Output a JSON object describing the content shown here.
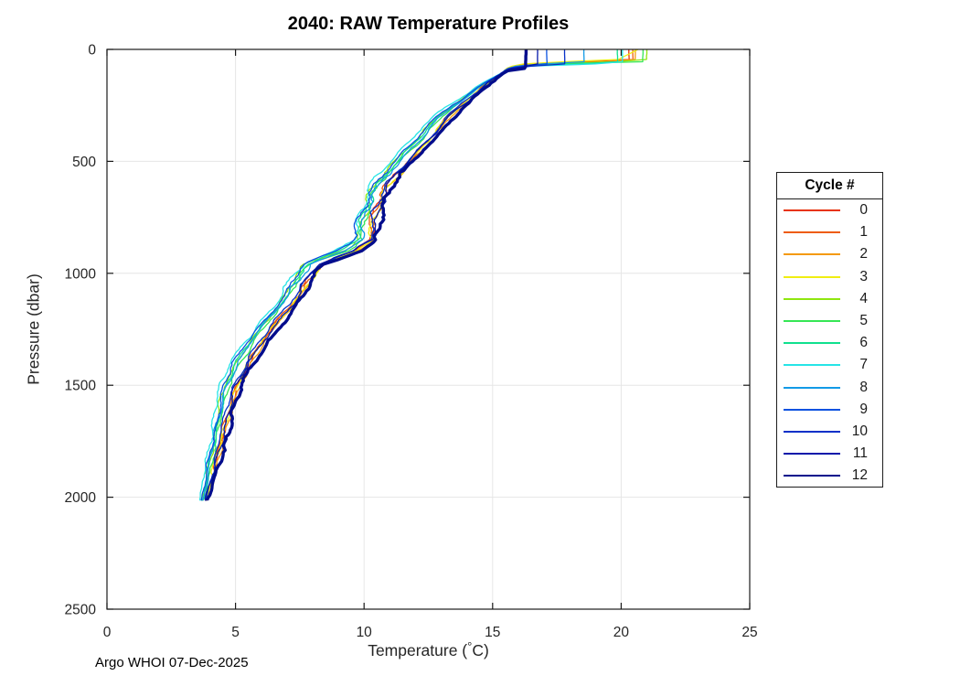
{
  "figure": {
    "title": "2040: RAW Temperature Profiles",
    "footer": "Argo WHOI 07-Dec-2025",
    "xlabel": "Temperature (°C)",
    "ylabel": "Pressure (dbar)",
    "legend_title": "Cycle #"
  },
  "chart_data": {
    "type": "line",
    "title": "2040: RAW Temperature Profiles",
    "xlabel": "Temperature (°C)",
    "ylabel": "Pressure (dbar)",
    "xlim": [
      0,
      25
    ],
    "ylim": [
      0,
      2500
    ],
    "y_axis_reversed": true,
    "grid": true,
    "x_ticks": [
      0,
      5,
      10,
      15,
      20,
      25
    ],
    "y_ticks": [
      0,
      500,
      1000,
      1500,
      2000,
      2500
    ],
    "legend_title": "Cycle #",
    "legend_position": "right-outside",
    "axis_color": "#1a1a1a",
    "axis_text_color": "#262626",
    "grid_color": "#e6e6e6",
    "pressures_dbar": [
      0,
      45,
      55,
      65,
      75,
      85,
      95,
      110,
      150,
      200,
      250,
      300,
      350,
      400,
      450,
      500,
      550,
      600,
      650,
      700,
      750,
      800,
      850,
      900,
      930,
      960,
      1000,
      1050,
      1100,
      1200,
      1300,
      1400,
      1500,
      1600,
      1700,
      1800,
      1900,
      2000,
      2015
    ],
    "base_temps_c": [
      null,
      null,
      null,
      null,
      null,
      null,
      null,
      15.35,
      14.8,
      14.25,
      13.7,
      13.2,
      12.8,
      12.45,
      12.0,
      11.6,
      11.2,
      10.85,
      10.6,
      10.45,
      10.3,
      10.2,
      10.1,
      9.5,
      8.8,
      8.15,
      7.8,
      7.55,
      7.3,
      6.6,
      5.9,
      5.35,
      4.9,
      4.65,
      4.45,
      4.25,
      4.05,
      3.85,
      3.8
    ],
    "offset_weights": [
      0,
      0,
      0,
      0,
      0,
      0,
      0,
      0.1,
      0.35,
      0.55,
      0.75,
      0.9,
      1,
      1,
      1,
      1,
      1,
      1,
      1,
      1,
      1,
      1,
      1,
      1,
      1,
      1,
      1,
      1,
      1,
      1,
      1,
      1,
      0.9,
      0.8,
      0.7,
      0.6,
      0.5,
      0.3,
      0.3
    ],
    "series": [
      {
        "cycle": "0",
        "color": "#e8340c",
        "line_width": 1.3,
        "offset_c": 0.15,
        "surface_temps": [
          20.3,
          20.3,
          18.6,
          16.4,
          15.8,
          15.6,
          15.5
        ]
      },
      {
        "cycle": "1",
        "color": "#ee5c0c",
        "line_width": 1.3,
        "offset_c": 0.1,
        "surface_temps": [
          20.45,
          20.45,
          18.2,
          16.3,
          15.8,
          15.55,
          15.45
        ]
      },
      {
        "cycle": "2",
        "color": "#f49a0c",
        "line_width": 1.3,
        "offset_c": 0.25,
        "surface_temps": [
          20.55,
          20.55,
          19.5,
          16.8,
          15.9,
          15.6,
          15.5
        ]
      },
      {
        "cycle": "3",
        "color": "#f0ee12",
        "line_width": 1.3,
        "offset_c": 0.15,
        "surface_temps": [
          20.65,
          19.9,
          17.8,
          16.2,
          15.75,
          15.55,
          15.45
        ]
      },
      {
        "cycle": "4",
        "color": "#8fe60f",
        "line_width": 1.3,
        "offset_c": -0.35,
        "surface_temps": [
          21.0,
          21.0,
          19.8,
          17.0,
          16.0,
          15.65,
          15.5
        ]
      },
      {
        "cycle": "5",
        "color": "#36e655",
        "line_width": 1.3,
        "offset_c": -0.2,
        "surface_temps": [
          20.85,
          20.85,
          20.85,
          17.6,
          16.1,
          15.7,
          15.55
        ]
      },
      {
        "cycle": "6",
        "color": "#10e08e",
        "line_width": 1.3,
        "offset_c": -0.3,
        "surface_temps": [
          19.85,
          19.85,
          19.85,
          18.3,
          16.2,
          15.7,
          15.5
        ]
      },
      {
        "cycle": "7",
        "color": "#26e4e6",
        "line_width": 1.3,
        "offset_c": -0.55,
        "surface_temps": [
          20.05,
          20.05,
          20.05,
          19.0,
          16.4,
          15.75,
          15.55
        ]
      },
      {
        "cycle": "8",
        "color": "#129ae6",
        "line_width": 1.3,
        "offset_c": -0.25,
        "surface_temps": [
          18.55,
          18.55,
          18.55,
          16.9,
          15.9,
          15.6,
          15.45
        ]
      },
      {
        "cycle": "9",
        "color": "#0a52e0",
        "line_width": 1.3,
        "offset_c": -0.4,
        "surface_temps": [
          17.1,
          17.1,
          17.1,
          17.1,
          16.0,
          15.6,
          15.45
        ]
      },
      {
        "cycle": "10",
        "color": "#0730c8",
        "line_width": 1.3,
        "offset_c": 0.05,
        "surface_temps": [
          17.8,
          17.8,
          17.8,
          17.8,
          16.5,
          15.75,
          15.5
        ]
      },
      {
        "cycle": "11",
        "color": "#0418aa",
        "line_width": 1.3,
        "offset_c": 0.15,
        "surface_temps": [
          16.75,
          16.75,
          16.75,
          16.75,
          16.3,
          15.7,
          15.5
        ]
      },
      {
        "cycle": "12",
        "color": "#010c8c",
        "line_width": 3.4,
        "offset_c": 0.35,
        "surface_temps": [
          16.3,
          16.3,
          16.3,
          16.3,
          16.3,
          16.25,
          15.6
        ]
      }
    ]
  }
}
